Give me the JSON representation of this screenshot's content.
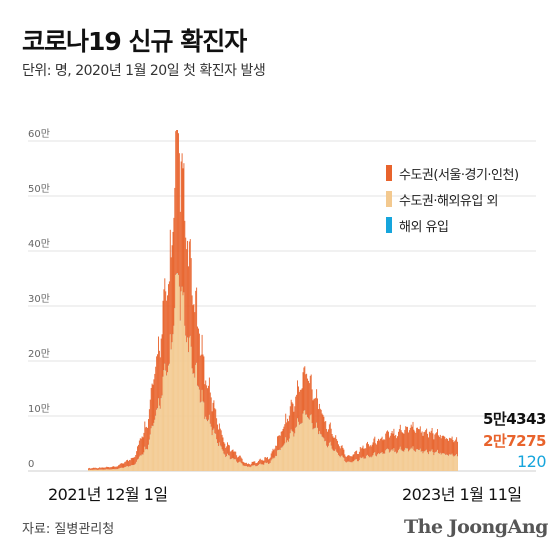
{
  "header": {
    "title": "코로나19 신규 확진자",
    "subtitle": "단위: 명, 2020년 1월 20일 첫 확진자 발생"
  },
  "chart_data": {
    "type": "bar",
    "stacked": true,
    "ylim": [
      0,
      620000
    ],
    "y_ticks": [
      {
        "value": 0,
        "label": "0"
      },
      {
        "value": 100000,
        "label": "10만"
      },
      {
        "value": 200000,
        "label": "20만"
      },
      {
        "value": 300000,
        "label": "30만"
      },
      {
        "value": 400000,
        "label": "40만"
      },
      {
        "value": 500000,
        "label": "50만"
      },
      {
        "value": 600000,
        "label": "60만"
      }
    ],
    "x_start_label": "2021년 12월 1일",
    "x_end_label": "2023년 1월 11일",
    "legend": [
      {
        "name": "수도권(서울·경기·인천)",
        "color": "#e8632c"
      },
      {
        "name": "수도권·해외유입 외",
        "color": "#f3c98f"
      },
      {
        "name": "해외 유입",
        "color": "#16a5dc"
      }
    ],
    "series_profile": [
      {
        "date_index": 0,
        "total": 5000,
        "other_share": 0.4
      },
      {
        "date_index": 30,
        "total": 7500,
        "other_share": 0.4
      },
      {
        "date_index": 50,
        "total": 25000,
        "other_share": 0.45
      },
      {
        "date_index": 65,
        "total": 90000,
        "other_share": 0.5
      },
      {
        "date_index": 80,
        "total": 250000,
        "other_share": 0.55
      },
      {
        "date_index": 92,
        "total": 400000,
        "other_share": 0.57
      },
      {
        "date_index": 98,
        "total": 621000,
        "other_share": 0.58
      },
      {
        "date_index": 110,
        "total": 380000,
        "other_share": 0.58
      },
      {
        "date_index": 130,
        "total": 160000,
        "other_share": 0.6
      },
      {
        "date_index": 150,
        "total": 50000,
        "other_share": 0.6
      },
      {
        "date_index": 175,
        "total": 12000,
        "other_share": 0.6
      },
      {
        "date_index": 200,
        "total": 25000,
        "other_share": 0.6
      },
      {
        "date_index": 225,
        "total": 120000,
        "other_share": 0.58
      },
      {
        "date_index": 240,
        "total": 180000,
        "other_share": 0.58
      },
      {
        "date_index": 260,
        "total": 90000,
        "other_share": 0.6
      },
      {
        "date_index": 285,
        "total": 25000,
        "other_share": 0.6
      },
      {
        "date_index": 305,
        "total": 45000,
        "other_share": 0.55
      },
      {
        "date_index": 330,
        "total": 65000,
        "other_share": 0.55
      },
      {
        "date_index": 355,
        "total": 80000,
        "other_share": 0.5
      },
      {
        "date_index": 372,
        "total": 70000,
        "other_share": 0.5
      },
      {
        "date_index": 406,
        "total": 54343,
        "other_share": 0.5
      }
    ],
    "total_days": 407,
    "last_values": {
      "total": "5만4343",
      "other": "2만7275",
      "overseas": "120"
    }
  },
  "footer": {
    "source": "자료: 질병관리청",
    "brand": "The JoongAng"
  }
}
